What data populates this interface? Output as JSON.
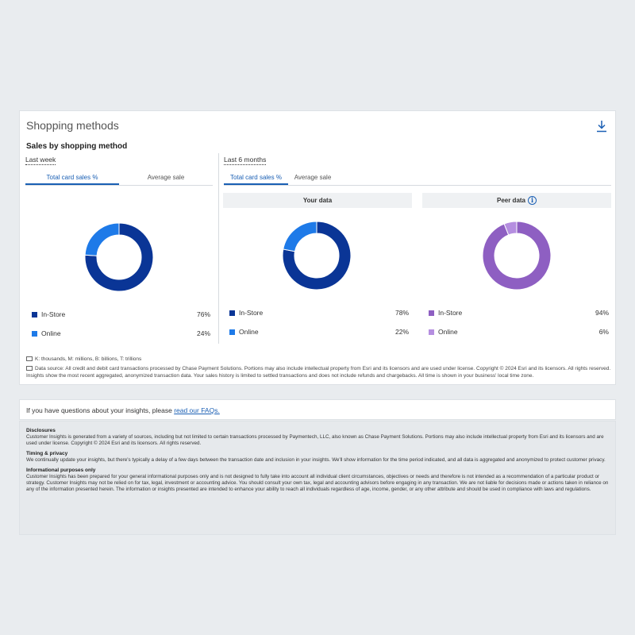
{
  "card": {
    "title": "Shopping methods",
    "section_title": "Sales by shopping method",
    "left": {
      "period": "Last week",
      "tabs": [
        "Total card sales %",
        "Average sale"
      ]
    },
    "right": {
      "period": "Last 6 months",
      "tabs": [
        "Total card sales %",
        "Average sale"
      ],
      "your_data_label": "Your data",
      "peer_data_label": "Peer data"
    },
    "footnote_units": "K: thousands, M: millions, B: billions, T: trillions",
    "footnote_source": "Data source: All credit and debit card transactions processed by Chase Payment Solutions. Portions may also include intellectual property from Esri and its licensors and are used under license. Copyright © 2024 Esri and its licensors. All rights reserved. Insights show the most recent aggregated, anonymized transaction data. Your sales history is limited to settled transactions and does not include refunds and chargebacks. All time is shown in your business' local time zone."
  },
  "chart_data": [
    {
      "type": "pie",
      "title": "",
      "categories": [
        "In-Store",
        "Online"
      ],
      "values": [
        76,
        24
      ],
      "labels": [
        "76%",
        "24%"
      ],
      "colors": [
        "#0a3596",
        "#1e7ae8"
      ]
    },
    {
      "type": "pie",
      "title": "Your data",
      "categories": [
        "In-Store",
        "Online"
      ],
      "values": [
        78,
        22
      ],
      "labels": [
        "78%",
        "22%"
      ],
      "colors": [
        "#0a3596",
        "#1e7ae8"
      ]
    },
    {
      "type": "pie",
      "title": "Peer data",
      "categories": [
        "In-Store",
        "Online"
      ],
      "values": [
        94,
        6
      ],
      "labels": [
        "94%",
        "6%"
      ],
      "colors": [
        "#8e5fc2",
        "#b58ee0"
      ]
    }
  ],
  "faq": {
    "text": "If you have questions about your insights, please ",
    "link": "read our FAQs."
  },
  "disclosures": [
    {
      "title": "Disclosures",
      "text": "Customer Insights is generated from a variety of sources, including but not limited to certain transactions processed by Paymentech, LLC, also known as Chase Payment Solutions. Portions may also include intellectual property from Esri and its licensors and are used under license. Copyright © 2024 Esri and its licensors. All rights reserved."
    },
    {
      "title": "Timing & privacy",
      "text": "We continually update your insights, but there's typically a delay of a few days between the transaction date and inclusion in your insights. We'll show information for the time period indicated, and all data is aggregated and anonymized to protect customer privacy."
    },
    {
      "title": "Informational purposes only",
      "text": "Customer Insights has been prepared for your general informational purposes only and is not designed to fully take into account all individual client circumstances, objectives or needs and therefore is not intended as a recommendation of a particular product or strategy. Customer Insights may not be relied on for tax, legal, investment or accounting advice. You should consult your own tax, legal and accounting advisors before engaging in any transaction. We are not liable for decisions made or actions taken in reliance on any of the information presented herein. The information or insights presented are intended to enhance your ability to reach all individuals regardless of age, income, gender, or any other attribute and should be used in compliance with laws and regulations."
    }
  ]
}
